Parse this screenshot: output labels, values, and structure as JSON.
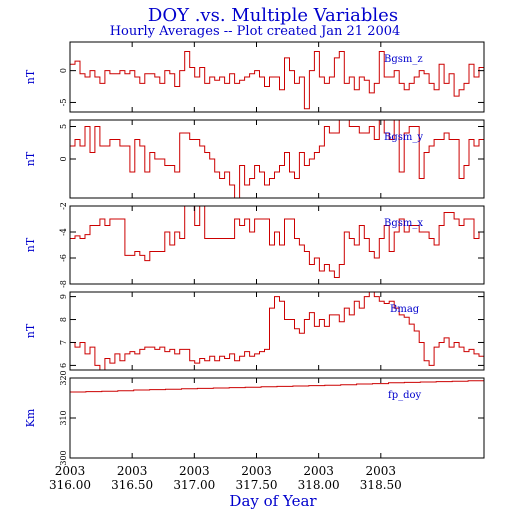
{
  "title": "DOY .vs. Multiple Variables",
  "subtitle": "Hourly Averages -- Plot created Jan 21 2004",
  "xlabel": "Day of Year",
  "colors": {
    "text": "#0000cc",
    "trace": "#cc0000",
    "axes": "#000000"
  },
  "chart_data": [
    {
      "type": "line",
      "series_label": "Bgsm_z",
      "ylabel": "nT",
      "ylim": [
        -6.5,
        4.5
      ],
      "yticks": [
        -5,
        0
      ],
      "xlim": [
        316.0,
        319.33
      ],
      "x_tick_values": [
        316.0,
        316.5,
        317.0,
        317.5,
        318.0,
        318.5
      ],
      "values": [
        1,
        1.5,
        -0.5,
        -1,
        0,
        -1,
        -2,
        0,
        -0.5,
        -0.5,
        0,
        -0.5,
        0,
        -1,
        -2,
        -0.5,
        -0.5,
        -1,
        -2,
        0,
        -0.5,
        -2.5,
        0,
        3,
        0.5,
        -1,
        0.5,
        -2,
        -1,
        -1.5,
        -1,
        -2,
        -0.5,
        -2,
        -1.5,
        -1,
        -0.5,
        0,
        -1,
        -2.5,
        -1,
        -1,
        -3,
        2,
        0,
        -2,
        -1,
        -6,
        0,
        3,
        -1,
        -2,
        -1,
        2,
        3,
        -2,
        -1,
        -3,
        -1,
        -1.5,
        -3.5,
        -2,
        3,
        -1,
        -1,
        0,
        -2,
        -3,
        -2,
        -1,
        0,
        -0.5,
        -2,
        -3,
        1,
        -2,
        -0.5,
        -4,
        -3,
        -2,
        1,
        -1,
        0.5
      ],
      "x_tick_years": [
        "2003",
        "2003",
        "2003",
        "2003",
        "2003",
        "2003"
      ],
      "x_tick_labels": [
        "316.00",
        "316.50",
        "317.00",
        "317.50",
        "318.00",
        "318.50"
      ]
    },
    {
      "type": "line",
      "series_label": "Bgsm_y",
      "ylabel": "nT",
      "ylim": [
        -6,
        6
      ],
      "yticks": [
        0,
        5
      ],
      "xlim": [
        316.0,
        319.33
      ],
      "x_tick_values": [
        316.0,
        316.5,
        317.0,
        317.5,
        318.0,
        318.5
      ],
      "values": [
        2,
        3,
        2,
        5,
        1,
        5,
        2,
        2,
        3,
        3,
        2,
        2,
        -2,
        3,
        2,
        -2,
        1,
        0,
        0,
        -1,
        -1,
        -2,
        4,
        4,
        3,
        3,
        2,
        1,
        0,
        -2,
        -3,
        -2,
        -4,
        -6,
        -1,
        -4,
        -3,
        -1,
        -2,
        -4,
        -3,
        -2,
        -1,
        1,
        -2,
        -3,
        1,
        -1,
        0,
        1,
        2,
        5,
        4,
        4,
        6,
        6,
        5,
        5,
        4,
        4,
        5,
        3,
        6,
        4,
        3,
        6,
        -2,
        4,
        5,
        5,
        -3,
        1,
        2,
        3,
        3,
        4,
        3,
        3,
        -3,
        -1,
        3,
        2,
        3
      ],
      "x_tick_years": [
        "2003",
        "2003",
        "2003",
        "2003",
        "2003",
        "2003"
      ],
      "x_tick_labels": [
        "316.00",
        "316.50",
        "317.00",
        "317.50",
        "318.00",
        "318.50"
      ]
    },
    {
      "type": "line",
      "series_label": "Bgsm_x",
      "ylabel": "nT",
      "ylim": [
        -8,
        -2
      ],
      "yticks": [
        -8,
        -6,
        -4,
        -2
      ],
      "xlim": [
        316.0,
        319.33
      ],
      "x_tick_values": [
        316.0,
        316.5,
        317.0,
        317.5,
        318.0,
        318.5
      ],
      "values": [
        -4.5,
        -4.3,
        -4.5,
        -4.2,
        -3.5,
        -3.5,
        -3,
        -3.5,
        -3,
        -3,
        -3,
        -5.8,
        -5.8,
        -5.5,
        -5.8,
        -6.2,
        -5.5,
        -5.5,
        -5.5,
        -4,
        -5,
        -4,
        -4.5,
        -2,
        -2,
        -3.5,
        -2,
        -4.5,
        -4.5,
        -4.5,
        -4.5,
        -4.5,
        -4.5,
        -3,
        -3.5,
        -3,
        -4,
        -3,
        -3,
        -3,
        -5,
        -4,
        -5,
        -3,
        -3,
        -4.5,
        -5,
        -5.5,
        -6.5,
        -6,
        -7,
        -6.5,
        -7,
        -7.5,
        -6.5,
        -4,
        -4.5,
        -5,
        -3.5,
        -4.5,
        -5.5,
        -6,
        -4.5,
        -3.5,
        -5.5,
        -4,
        -3,
        -4,
        -3.5,
        -3.5,
        -4,
        -4,
        -4.5,
        -5,
        -3.5,
        -2.5,
        -2.5,
        -3,
        -3.5,
        -3,
        -3,
        -4.5,
        -4
      ],
      "x_tick_years": [
        "2003",
        "2003",
        "2003",
        "2003",
        "2003",
        "2003"
      ],
      "x_tick_labels": [
        "316.00",
        "316.50",
        "317.00",
        "317.50",
        "318.00",
        "318.50"
      ]
    },
    {
      "type": "line",
      "series_label": "Bmag",
      "ylabel": "nT",
      "ylim": [
        5.8,
        9.2
      ],
      "yticks": [
        6,
        7,
        8,
        9
      ],
      "xlim": [
        316.0,
        319.33
      ],
      "x_tick_values": [
        316.0,
        316.5,
        317.0,
        317.5,
        318.0,
        318.5
      ],
      "values": [
        7,
        6.8,
        7,
        6.5,
        6.8,
        6,
        5.8,
        6.3,
        6.1,
        6.5,
        6.2,
        6.5,
        6.6,
        6.5,
        6.7,
        6.8,
        6.8,
        6.7,
        6.8,
        6.6,
        6.7,
        6.5,
        6.7,
        6.7,
        6.2,
        6.1,
        6.3,
        6.2,
        6.4,
        6.2,
        6.4,
        6.3,
        6.5,
        6.2,
        6.4,
        6.6,
        6.4,
        6.5,
        6.6,
        6.7,
        8.5,
        9,
        8.8,
        8,
        8,
        7.6,
        7.4,
        8,
        8.3,
        7.7,
        8,
        7.7,
        8.2,
        8.2,
        7.9,
        8.5,
        8.2,
        8.8,
        8.5,
        9,
        9.2,
        9,
        8.8,
        8.7,
        8.8,
        8.5,
        8.2,
        8.1,
        7.8,
        7.5,
        7,
        6.2,
        6,
        6.8,
        7,
        7.2,
        6.8,
        7,
        6.8,
        6.6,
        6.7,
        6.5,
        6.4
      ],
      "x_tick_years": [
        "2003",
        "2003",
        "2003",
        "2003",
        "2003",
        "2003"
      ],
      "x_tick_labels": [
        "316.00",
        "316.50",
        "317.00",
        "317.50",
        "318.00",
        "318.50"
      ]
    },
    {
      "type": "line",
      "series_label": "fp_doy",
      "ylabel": "Km",
      "ylim": [
        300,
        320
      ],
      "yticks": [
        300,
        310,
        320
      ],
      "xlim": [
        316.0,
        319.33
      ],
      "x_tick_values": [
        316.0,
        316.5,
        317.0,
        317.5,
        318.0,
        318.5
      ],
      "values": [
        316.5,
        316.6,
        316.7,
        316.8,
        317.0,
        317.1,
        317.2,
        317.3,
        317.4,
        317.5,
        317.6,
        317.7,
        317.8,
        317.9,
        318.0,
        318.1,
        318.2,
        318.3,
        318.5,
        318.6,
        318.8,
        318.9,
        319.0,
        319.1,
        319.2,
        319.3
      ],
      "x_tick_years": [
        "2003",
        "2003",
        "2003",
        "2003",
        "2003",
        "2003"
      ],
      "x_tick_labels": [
        "316.00",
        "316.50",
        "317.00",
        "317.50",
        "318.00",
        "318.50"
      ]
    }
  ]
}
